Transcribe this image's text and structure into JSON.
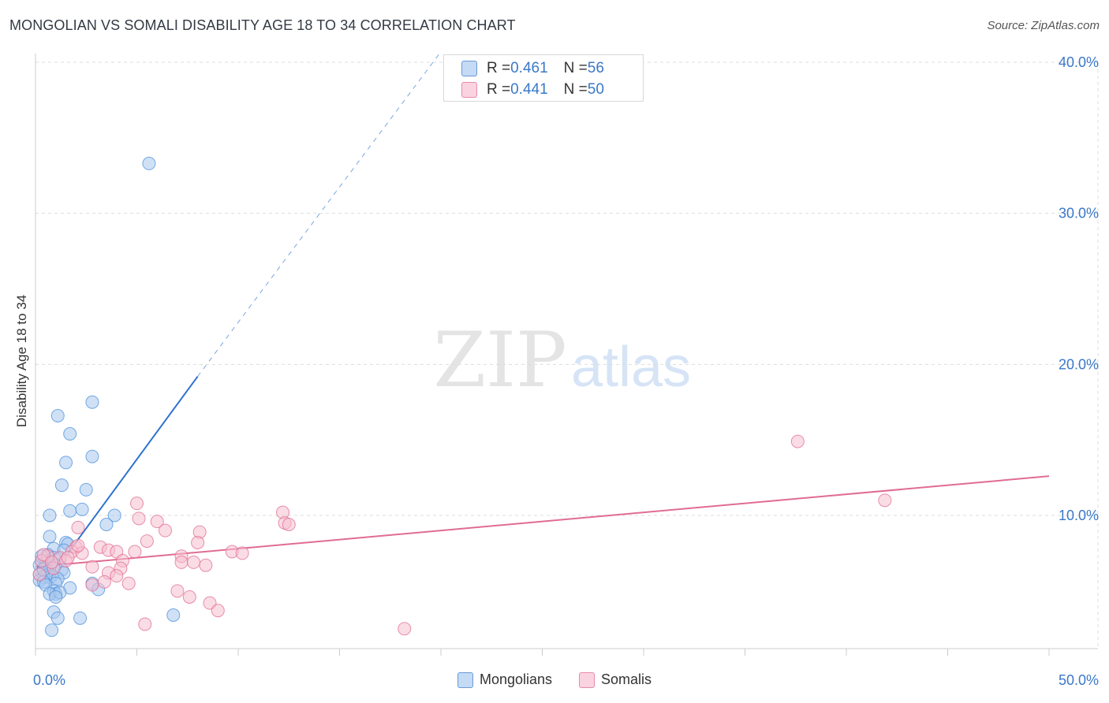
{
  "title": "MONGOLIAN VS SOMALI DISABILITY AGE 18 TO 34 CORRELATION CHART",
  "source": "Source: ZipAtlas.com",
  "watermark": {
    "zip": "ZIP",
    "atlas": "atlas"
  },
  "stats_legend": [
    {
      "r_label": "R = ",
      "r_value": "0.461",
      "n_label": "N = ",
      "n_value": "56",
      "color": "#a9c8ef",
      "stroke": "#6a9ad8"
    },
    {
      "r_label": "R = ",
      "r_value": "0.441",
      "n_label": "N = ",
      "n_value": "50",
      "color": "#f6bfd0",
      "stroke": "#e98aa9"
    }
  ],
  "legend": [
    {
      "label": "Mongolians",
      "color": "#a9c8ef",
      "stroke": "#6a9ad8"
    },
    {
      "label": "Somalis",
      "color": "#f6bfd0",
      "stroke": "#e98aa9"
    }
  ],
  "chart_data": {
    "type": "scatter",
    "title": "MONGOLIAN VS SOMALI DISABILITY AGE 18 TO 34 CORRELATION CHART",
    "xlabel": "",
    "ylabel": "Disability Age 18 to 34",
    "xlim": [
      0,
      50
    ],
    "ylim": [
      0,
      42
    ],
    "x_tick_labels": [
      "0.0%",
      "50.0%"
    ],
    "y_ticks": [
      10,
      20,
      30,
      40
    ],
    "y_tick_labels": [
      "10.0%",
      "20.0%",
      "30.0%",
      "40.0%"
    ],
    "grid": true,
    "legend_position": "bottom",
    "series": [
      {
        "name": "Mongolians",
        "color": "#4a8fdb",
        "fill": "#a9c8ef",
        "points": [
          [
            5.6,
            33.3
          ],
          [
            2.8,
            17.5
          ],
          [
            1.1,
            16.6
          ],
          [
            1.7,
            15.4
          ],
          [
            2.8,
            13.9
          ],
          [
            1.5,
            13.5
          ],
          [
            1.3,
            12.0
          ],
          [
            2.5,
            11.7
          ],
          [
            1.7,
            10.3
          ],
          [
            2.3,
            10.4
          ],
          [
            0.7,
            10.0
          ],
          [
            3.9,
            10.0
          ],
          [
            3.5,
            9.4
          ],
          [
            0.7,
            8.6
          ],
          [
            1.5,
            8.2
          ],
          [
            1.6,
            8.1
          ],
          [
            0.9,
            7.8
          ],
          [
            1.4,
            7.7
          ],
          [
            0.6,
            7.4
          ],
          [
            0.9,
            7.2
          ],
          [
            1.2,
            7.1
          ],
          [
            0.3,
            7.0
          ],
          [
            0.5,
            6.9
          ],
          [
            0.8,
            6.8
          ],
          [
            0.2,
            6.7
          ],
          [
            1.0,
            6.7
          ],
          [
            0.4,
            6.5
          ],
          [
            1.3,
            6.4
          ],
          [
            0.6,
            6.3
          ],
          [
            0.3,
            6.2
          ],
          [
            1.4,
            6.2
          ],
          [
            0.2,
            6.1
          ],
          [
            0.5,
            6.0
          ],
          [
            0.8,
            6.0
          ],
          [
            0.4,
            5.9
          ],
          [
            0.7,
            5.9
          ],
          [
            1.1,
            5.8
          ],
          [
            0.2,
            5.7
          ],
          [
            0.4,
            5.6
          ],
          [
            1.0,
            5.5
          ],
          [
            2.8,
            5.5
          ],
          [
            0.5,
            5.4
          ],
          [
            1.7,
            5.2
          ],
          [
            3.1,
            5.1
          ],
          [
            0.9,
            5.0
          ],
          [
            1.0,
            4.8
          ],
          [
            0.7,
            4.8
          ],
          [
            1.2,
            4.9
          ],
          [
            1.0,
            4.6
          ],
          [
            0.4,
            6.4
          ],
          [
            0.9,
            3.6
          ],
          [
            1.1,
            3.2
          ],
          [
            2.2,
            3.2
          ],
          [
            6.8,
            3.4
          ],
          [
            0.8,
            2.4
          ],
          [
            0.3,
            7.3
          ]
        ]
      },
      {
        "name": "Somalis",
        "color": "#e06c93",
        "fill": "#f6bfd0",
        "points": [
          [
            37.6,
            14.9
          ],
          [
            41.9,
            11.0
          ],
          [
            5.0,
            10.8
          ],
          [
            12.2,
            10.2
          ],
          [
            5.1,
            9.8
          ],
          [
            6.0,
            9.6
          ],
          [
            12.3,
            9.5
          ],
          [
            12.5,
            9.4
          ],
          [
            2.1,
            9.2
          ],
          [
            6.4,
            9.0
          ],
          [
            8.1,
            8.9
          ],
          [
            8.0,
            8.2
          ],
          [
            5.5,
            8.3
          ],
          [
            3.2,
            7.9
          ],
          [
            2.0,
            7.9
          ],
          [
            3.6,
            7.7
          ],
          [
            4.9,
            7.6
          ],
          [
            9.7,
            7.6
          ],
          [
            4.0,
            7.6
          ],
          [
            1.8,
            7.6
          ],
          [
            2.3,
            7.5
          ],
          [
            10.2,
            7.5
          ],
          [
            7.2,
            7.3
          ],
          [
            0.6,
            7.3
          ],
          [
            1.2,
            7.2
          ],
          [
            1.5,
            7.0
          ],
          [
            4.3,
            7.0
          ],
          [
            0.3,
            7.0
          ],
          [
            7.2,
            6.9
          ],
          [
            7.8,
            6.9
          ],
          [
            8.4,
            6.7
          ],
          [
            2.8,
            6.6
          ],
          [
            4.2,
            6.5
          ],
          [
            0.9,
            6.5
          ],
          [
            3.6,
            6.2
          ],
          [
            0.2,
            6.1
          ],
          [
            4.0,
            6.0
          ],
          [
            3.4,
            5.6
          ],
          [
            4.6,
            5.5
          ],
          [
            2.8,
            5.4
          ],
          [
            7.0,
            5.0
          ],
          [
            7.6,
            4.6
          ],
          [
            8.6,
            4.2
          ],
          [
            9.0,
            3.7
          ],
          [
            5.4,
            2.8
          ],
          [
            18.2,
            2.5
          ],
          [
            0.4,
            7.4
          ],
          [
            1.6,
            7.2
          ],
          [
            0.8,
            6.9
          ],
          [
            2.1,
            8.0
          ]
        ]
      }
    ],
    "trend_lines": [
      {
        "series": "Mongolians",
        "x_start": 1.6,
        "y_start": 7.5,
        "x_solid_end": 8.0,
        "y_solid_end": 19.2,
        "x_dash_end": 20.0,
        "y_dash_end": 40.7
      },
      {
        "series": "Somalis",
        "x_start": 0.0,
        "y_start": 6.6,
        "x_end": 50.0,
        "y_end": 12.6
      }
    ]
  }
}
